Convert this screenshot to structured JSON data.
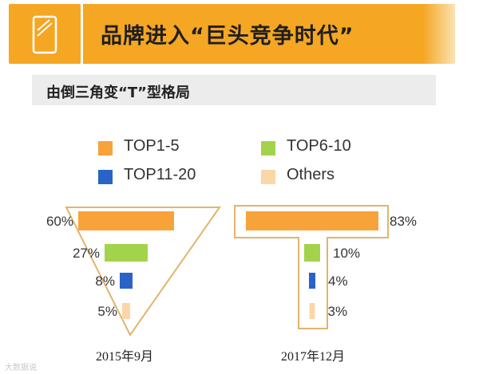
{
  "header": {
    "title": "品牌进入“巨头竞争时代”",
    "subtitle": "由倒三角变“T”型格局"
  },
  "chart_data": {
    "type": "bar",
    "categories": [
      "TOP1-5",
      "TOP6-10",
      "TOP11-20",
      "Others"
    ],
    "colors": [
      "#f7a33a",
      "#a3d34a",
      "#2a63c8",
      "#fbd7a8"
    ],
    "series": [
      {
        "name": "2015年9月",
        "values": [
          60,
          27,
          8,
          5
        ]
      },
      {
        "name": "2017年12月",
        "values": [
          83,
          10,
          4,
          3
        ]
      }
    ],
    "value_labels": [
      [
        "60%",
        "27%",
        "8%",
        "5%"
      ],
      [
        "83%",
        "10%",
        "4%",
        "3%"
      ]
    ],
    "legend": [
      "TOP1-5",
      "TOP6-10",
      "TOP11-20",
      "Others"
    ],
    "legend_placement": "top",
    "unit": "%"
  },
  "watermark": "大数据说"
}
